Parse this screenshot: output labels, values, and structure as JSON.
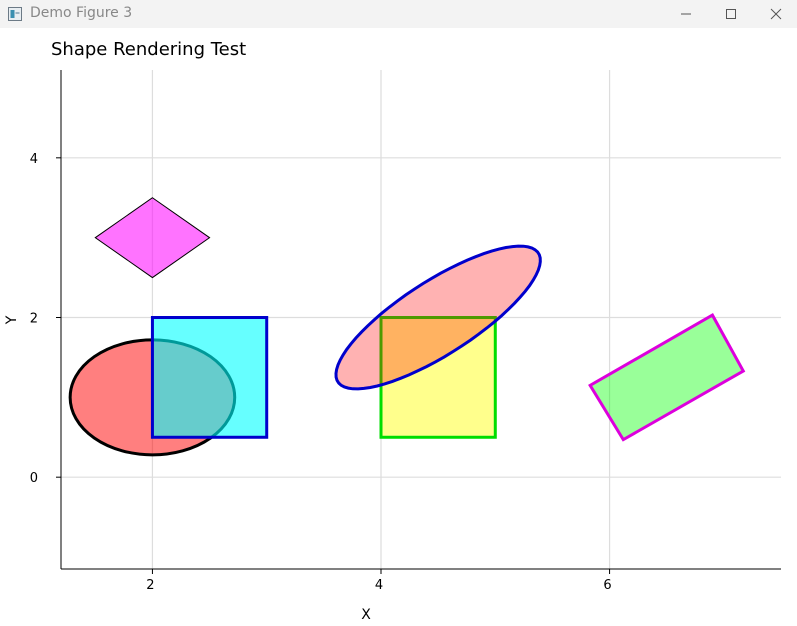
{
  "window": {
    "title": "Demo Figure 3",
    "icons": {
      "app": "figure-window-icon",
      "minimize": "minimize-icon",
      "maximize": "maximize-icon",
      "close": "close-icon"
    }
  },
  "chart_data": {
    "type": "shapes",
    "title": "Shape Rendering Test",
    "xlabel": "X",
    "ylabel": "Y",
    "xlim": [
      1.2,
      7.5
    ],
    "ylim": [
      -1.15,
      5.1
    ],
    "xticks": [
      2,
      4,
      6
    ],
    "yticks": [
      0,
      2,
      4
    ],
    "grid": true,
    "shapes": [
      {
        "kind": "circle",
        "center": [
          2,
          1
        ],
        "radius": 0.72,
        "fill": "#ff0000",
        "fill_opacity": 0.5,
        "stroke": "#000000"
      },
      {
        "kind": "rectangle",
        "corner": [
          2,
          0.5
        ],
        "width": 1,
        "height": 1.5,
        "fill": "#00ffff",
        "fill_opacity": 0.6,
        "stroke": "#0000cc"
      },
      {
        "kind": "diamond",
        "center": [
          2,
          3
        ],
        "half_width": 0.5,
        "half_height": 0.5,
        "fill": "#ff00ff",
        "fill_opacity": 0.55,
        "stroke": "#000000"
      },
      {
        "kind": "rectangle",
        "corner": [
          4,
          0.5
        ],
        "width": 1,
        "height": 1.5,
        "fill": "#ffff00",
        "fill_opacity": 0.45,
        "stroke": "#00dd00"
      },
      {
        "kind": "ellipse",
        "center": [
          4.5,
          2
        ],
        "semi_major": 1.2,
        "semi_minor": 0.4,
        "angle_deg": 45,
        "fill": "#ff0000",
        "fill_opacity": 0.3,
        "stroke": "#0000cc"
      },
      {
        "kind": "polygon",
        "points": [
          [
            5.83,
            1.15
          ],
          [
            6.9,
            2.03
          ],
          [
            7.17,
            1.33
          ],
          [
            6.12,
            0.47
          ]
        ],
        "fill": "#00ff00",
        "fill_opacity": 0.4,
        "stroke": "#dd00dd"
      }
    ]
  }
}
